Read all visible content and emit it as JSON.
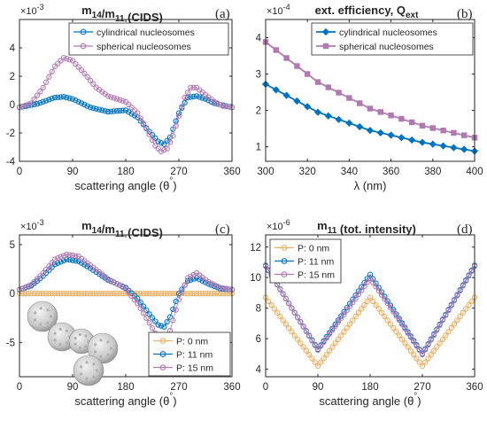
{
  "chart_data": [
    {
      "type": "line",
      "panel_label": "(a)",
      "title": "m14/m11 (CIDS)",
      "xlabel": "scattering angle (θ°)",
      "ylabel": "",
      "y_multiplier": "×10^-3",
      "xlim": [
        0,
        360
      ],
      "ylim": [
        -4,
        6
      ],
      "xticks": [
        0,
        90,
        180,
        270,
        360
      ],
      "yticks": [
        -4,
        -2,
        0,
        2,
        4
      ],
      "legend_position": "top-right",
      "x_step": 5,
      "series": [
        {
          "name": "cylindrical nucleosomes",
          "color": "#0072BD",
          "marker": "circle",
          "x": [
            0,
            30,
            60,
            75,
            90,
            120,
            150,
            180,
            200,
            220,
            235,
            245,
            255,
            270,
            285,
            300,
            315,
            330,
            360
          ],
          "y": [
            -0.2,
            0.05,
            0.5,
            0.55,
            0.4,
            -0.2,
            -0.5,
            -0.4,
            -0.9,
            -1.9,
            -2.6,
            -2.8,
            -2.3,
            -0.6,
            0.5,
            0.6,
            0.4,
            0.1,
            -0.2
          ]
        },
        {
          "name": "spherical nucleosomes",
          "color": "#B07AB0",
          "marker": "circle",
          "x": [
            0,
            20,
            40,
            60,
            75,
            90,
            110,
            130,
            150,
            180,
            200,
            215,
            230,
            240,
            250,
            260,
            270,
            280,
            290,
            300,
            315,
            330,
            345,
            360
          ],
          "y": [
            -0.2,
            0.1,
            1.2,
            2.7,
            3.3,
            3.1,
            2.2,
            1.2,
            0.6,
            0.2,
            -0.6,
            -1.7,
            -2.9,
            -3.3,
            -3.1,
            -2.2,
            -0.8,
            0.5,
            1.2,
            1.2,
            0.7,
            0.2,
            -0.1,
            -0.2
          ]
        }
      ]
    },
    {
      "type": "line",
      "panel_label": "(b)",
      "title": "ext. efficiency, Qext",
      "xlabel": "λ (nm)",
      "ylabel": "",
      "y_multiplier": "×10^-4",
      "xlim": [
        300,
        400
      ],
      "ylim": [
        0.6,
        4.5
      ],
      "xticks": [
        300,
        320,
        340,
        360,
        380,
        400
      ],
      "yticks": [
        1,
        2,
        3,
        4
      ],
      "legend_position": "top-right",
      "x_step": 5,
      "series": [
        {
          "name": "cylindrical nucleosomes",
          "color": "#0072BD",
          "marker": "diamond",
          "x": [
            300,
            325,
            350,
            375,
            400
          ],
          "y": [
            2.72,
            1.95,
            1.45,
            1.12,
            0.88
          ]
        },
        {
          "name": "spherical nucleosomes",
          "color": "#B07AB0",
          "marker": "square",
          "x": [
            300,
            325,
            350,
            375,
            400
          ],
          "y": [
            3.88,
            2.78,
            2.05,
            1.58,
            1.25
          ]
        }
      ]
    },
    {
      "type": "line",
      "panel_label": "(c)",
      "title": "m14/m11 (CIDS)",
      "xlabel": "scattering angle (θ°)",
      "ylabel": "",
      "y_multiplier": "×10^-3",
      "xlim": [
        0,
        360
      ],
      "ylim": [
        -8.5,
        6
      ],
      "xticks": [
        0,
        90,
        180,
        270,
        360
      ],
      "yticks": [
        -5,
        0,
        5
      ],
      "legend_position": "bottom-right",
      "x_step": 5,
      "series": [
        {
          "name": "P: 0 nm",
          "color": "#E6B066",
          "marker": "circle",
          "x": [
            0,
            360
          ],
          "y": [
            0,
            0
          ]
        },
        {
          "name": "P: 11 nm",
          "color": "#0072BD",
          "marker": "circle",
          "x": [
            0,
            20,
            40,
            60,
            80,
            100,
            120,
            150,
            180,
            200,
            220,
            235,
            245,
            255,
            270,
            285,
            300,
            320,
            340,
            360
          ],
          "y": [
            0.4,
            0.8,
            1.8,
            3.0,
            3.5,
            3.3,
            2.6,
            1.4,
            0.6,
            -0.5,
            -2.1,
            -3.2,
            -3.4,
            -2.4,
            0.0,
            1.3,
            1.6,
            1.0,
            0.5,
            0.4
          ]
        },
        {
          "name": "P: 15 nm",
          "color": "#B07AB0",
          "marker": "circle",
          "x": [
            0,
            20,
            40,
            60,
            80,
            100,
            120,
            150,
            180,
            200,
            220,
            235,
            245,
            255,
            270,
            285,
            300,
            320,
            340,
            360
          ],
          "y": [
            0.4,
            0.9,
            2.1,
            3.5,
            4.0,
            3.8,
            2.9,
            1.5,
            0.5,
            -1.0,
            -3.0,
            -4.6,
            -5.0,
            -3.8,
            -0.6,
            1.6,
            2.1,
            1.2,
            0.6,
            0.4
          ]
        }
      ]
    },
    {
      "type": "line",
      "panel_label": "(d)",
      "title": "m11 (tot. intensity)",
      "xlabel": "scattering angle (θ°)",
      "ylabel": "",
      "y_multiplier": "×10^-6",
      "xlim": [
        0,
        360
      ],
      "ylim": [
        3.5,
        12.8
      ],
      "xticks": [
        0,
        90,
        180,
        270,
        360
      ],
      "yticks": [
        4,
        6,
        8,
        10,
        12
      ],
      "legend_position": "top-left",
      "x_step": 5,
      "series": [
        {
          "name": "P: 0 nm",
          "color": "#E6B066",
          "marker": "circle",
          "x": [
            0,
            45,
            90,
            135,
            180,
            225,
            270,
            315,
            360
          ],
          "y": [
            8.7,
            6.45,
            4.2,
            6.45,
            8.7,
            6.45,
            4.2,
            6.45,
            8.7
          ]
        },
        {
          "name": "P: 11 nm",
          "color": "#0072BD",
          "marker": "circle",
          "x": [
            0,
            45,
            90,
            135,
            180,
            225,
            270,
            315,
            360
          ],
          "y": [
            10.8,
            8.0,
            5.3,
            7.75,
            10.2,
            7.6,
            5.0,
            7.9,
            10.8
          ]
        },
        {
          "name": "P: 15 nm",
          "color": "#B07AB0",
          "marker": "circle",
          "x": [
            0,
            45,
            90,
            135,
            180,
            225,
            270,
            315,
            360
          ],
          "y": [
            10.75,
            8.0,
            5.25,
            7.6,
            9.95,
            7.5,
            4.95,
            7.85,
            10.75
          ]
        }
      ]
    }
  ]
}
